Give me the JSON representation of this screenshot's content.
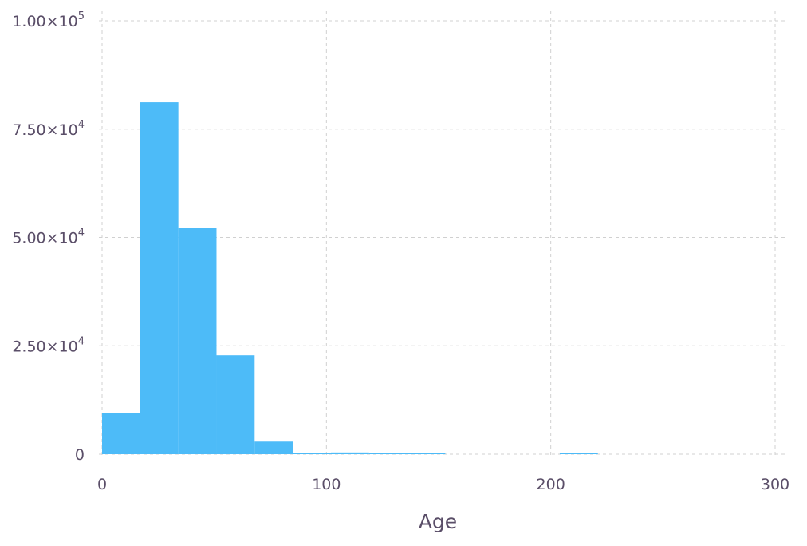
{
  "chart_data": {
    "type": "bar",
    "title": "",
    "xlabel": "Age",
    "ylabel": "",
    "xlim": [
      0,
      302
    ],
    "ylim": [
      0,
      100000
    ],
    "grid": true,
    "bar_color": "#4dbbf8",
    "x_ticks": [
      {
        "value": 0,
        "label": "0"
      },
      {
        "value": 100,
        "label": "100"
      },
      {
        "value": 200,
        "label": "200"
      },
      {
        "value": 300,
        "label": "300"
      }
    ],
    "y_ticks": [
      {
        "value": 0,
        "label": "0"
      },
      {
        "value": 25000,
        "label": "2.50×10",
        "exp": "4"
      },
      {
        "value": 50000,
        "label": "5.00×10",
        "exp": "4"
      },
      {
        "value": 75000,
        "label": "7.50×10",
        "exp": "4"
      },
      {
        "value": 100000,
        "label": "1.00×10",
        "exp": "5"
      }
    ],
    "bins": [
      {
        "x0": 0,
        "x1": 17,
        "value": 9400
      },
      {
        "x0": 17,
        "x1": 34,
        "value": 81200
      },
      {
        "x0": 34,
        "x1": 51,
        "value": 52200
      },
      {
        "x0": 51,
        "x1": 68,
        "value": 22800
      },
      {
        "x0": 68,
        "x1": 85,
        "value": 2900
      },
      {
        "x0": 85,
        "x1": 102,
        "value": 250
      },
      {
        "x0": 102,
        "x1": 119,
        "value": 400
      },
      {
        "x0": 119,
        "x1": 136,
        "value": 200
      },
      {
        "x0": 136,
        "x1": 153,
        "value": 200
      },
      {
        "x0": 153,
        "x1": 170,
        "value": 0
      },
      {
        "x0": 170,
        "x1": 187,
        "value": 0
      },
      {
        "x0": 187,
        "x1": 204,
        "value": 0
      },
      {
        "x0": 204,
        "x1": 221,
        "value": 250
      }
    ]
  }
}
